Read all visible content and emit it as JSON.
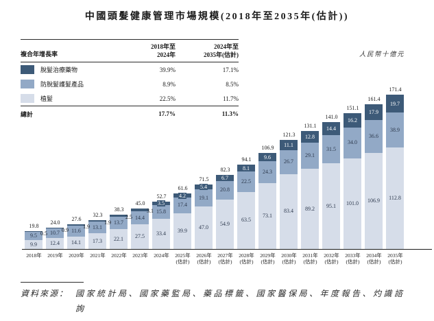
{
  "title": "中國頭髮健康管理市場規模(2018年至2035年(估計))",
  "unit_label": "人民幣十億元",
  "cagr_table": {
    "header": {
      "label": "複合年增長率",
      "col_2018_2024": "2018年至\n2024年",
      "col_2024_2035": "2024年至\n2035年(估計)"
    },
    "rows": [
      {
        "label": "脫髮治療藥物",
        "color": "#3d5a78",
        "cagr_2018_2024": "39.9%",
        "cagr_2024_2035": "17.1%"
      },
      {
        "label": "防脫髮護髮產品",
        "color": "#92a9c6",
        "cagr_2018_2024": "8.9%",
        "cagr_2024_2035": "8.5%"
      },
      {
        "label": "植髮",
        "color": "#d6dde9",
        "cagr_2018_2024": "22.5%",
        "cagr_2024_2035": "11.7%"
      }
    ],
    "total": {
      "label": "總計",
      "cagr_2018_2024": "17.7%",
      "cagr_2024_2035": "11.3%"
    }
  },
  "chart_data": {
    "type": "bar",
    "stacked": true,
    "title": "中國頭髮健康管理市場規模(2018年至2035年(估計))",
    "ylabel": "人民幣十億元",
    "categories": [
      "2018年",
      "2019年",
      "2020年",
      "2021年",
      "2022年",
      "2023年",
      "2024年",
      "2025年",
      "2026年",
      "2027年",
      "2028年",
      "2029年",
      "2030年",
      "2031年",
      "2032年",
      "2033年",
      "2034年",
      "2035年"
    ],
    "estimate_note": "(估計)",
    "first_estimate_index": 7,
    "series": [
      {
        "name": "脫髮治療藥物",
        "color": "#3d5a78",
        "values": [
          0.5,
          0.9,
          1.9,
          1.9,
          2.5,
          3.1,
          3.5,
          4.2,
          5.4,
          6.7,
          8.1,
          9.6,
          11.1,
          12.8,
          14.4,
          16.2,
          17.9,
          19.7
        ]
      },
      {
        "name": "防脫髮護髮產品",
        "color": "#92a9c6",
        "values": [
          9.5,
          10.7,
          11.6,
          13.1,
          13.7,
          14.4,
          15.8,
          17.4,
          19.1,
          20.8,
          22.5,
          24.3,
          26.7,
          29.1,
          31.5,
          34.0,
          36.6,
          38.9
        ]
      },
      {
        "name": "植髮",
        "color": "#d6dde9",
        "values": [
          9.9,
          12.4,
          14.1,
          17.3,
          22.1,
          27.5,
          33.4,
          39.9,
          47.0,
          54.9,
          63.5,
          73.1,
          83.4,
          89.2,
          95.1,
          101.0,
          106.9,
          112.8
        ]
      }
    ],
    "totals": [
      19.8,
      24.0,
      27.6,
      32.3,
      38.3,
      45.0,
      52.7,
      61.6,
      71.5,
      82.3,
      94.1,
      106.9,
      121.3,
      131.1,
      141.0,
      151.1,
      161.4,
      171.4
    ],
    "ylim": [
      0,
      180
    ],
    "grid": false,
    "legend_position": "top-left-table"
  },
  "source": {
    "label": "資料來源：",
    "text": "國家統計局、國家藥監局、藥品標籤、國家醫保局、年度報告、灼識諮詢"
  }
}
